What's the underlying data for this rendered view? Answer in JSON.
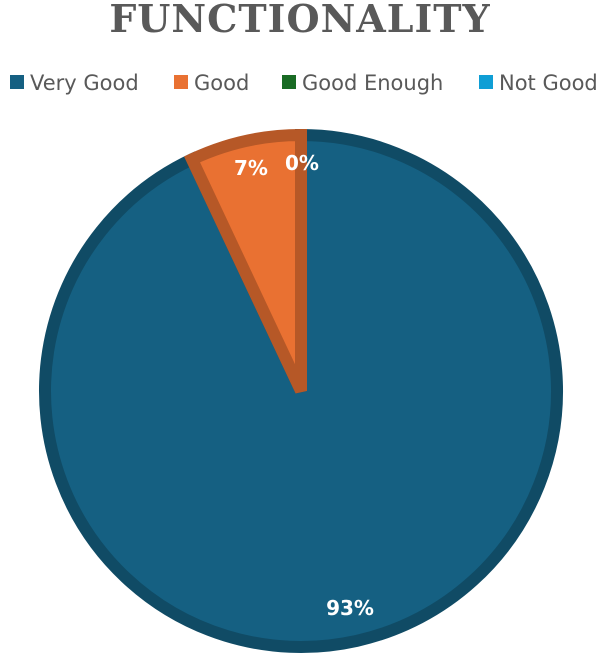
{
  "chart_data": {
    "type": "pie",
    "title": "FUNCTIONALITY",
    "categories": [
      "Very Good",
      "Good",
      "Good Enough",
      "Not Good"
    ],
    "values": [
      93,
      7,
      0,
      0
    ],
    "data_labels": [
      "93%",
      "7%",
      "0%",
      ""
    ],
    "legend_position": "top",
    "colors": {
      "Very Good": "#156082",
      "Good": "#e97132",
      "Good Enough": "#196b24",
      "Not Good": "#0f9ed5"
    }
  }
}
